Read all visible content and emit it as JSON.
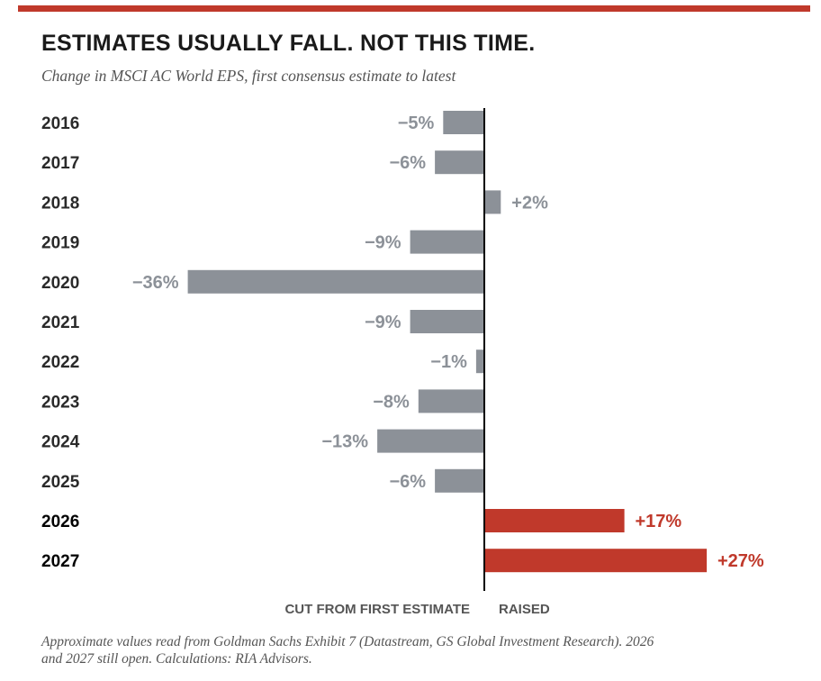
{
  "title": "ESTIMATES USUALLY FALL. NOT THIS TIME.",
  "subtitle": "Change in MSCI AC World EPS, first consensus estimate to latest",
  "axis_labels": {
    "left": "CUT FROM FIRST ESTIMATE",
    "right": "RAISED"
  },
  "footnote": "Approximate values read from Goldman Sachs Exhibit 7 (Datastream, GS Global Investment Research). 2026 and 2027 still open. Calculations: RIA Advisors.",
  "colors": {
    "negative": "#8c9198",
    "positive": "#c0392b",
    "year_text": "#2a2a2a",
    "axis": "#000000",
    "accent_rule": "#c0392b"
  },
  "chart_data": {
    "type": "bar",
    "orientation": "horizontal",
    "title": "ESTIMATES USUALLY FALL. NOT THIS TIME.",
    "subtitle": "Change in MSCI AC World EPS, first consensus estimate to latest",
    "categories": [
      "2016",
      "2017",
      "2018",
      "2019",
      "2020",
      "2021",
      "2022",
      "2023",
      "2024",
      "2025",
      "2026",
      "2027"
    ],
    "values": [
      -5,
      -6,
      2,
      -9,
      -36,
      -9,
      -1,
      -8,
      -13,
      -6,
      17,
      27
    ],
    "labels": [
      "−5%",
      "−6%",
      "+2%",
      "−9%",
      "−36%",
      "−9%",
      "−1%",
      "−8%",
      "−13%",
      "−6%",
      "+17%",
      "+27%"
    ],
    "highlighted_categories": [
      "2026",
      "2027"
    ],
    "unit": "%",
    "xlim": [
      -36,
      27
    ],
    "grid": false,
    "legend": "none"
  }
}
